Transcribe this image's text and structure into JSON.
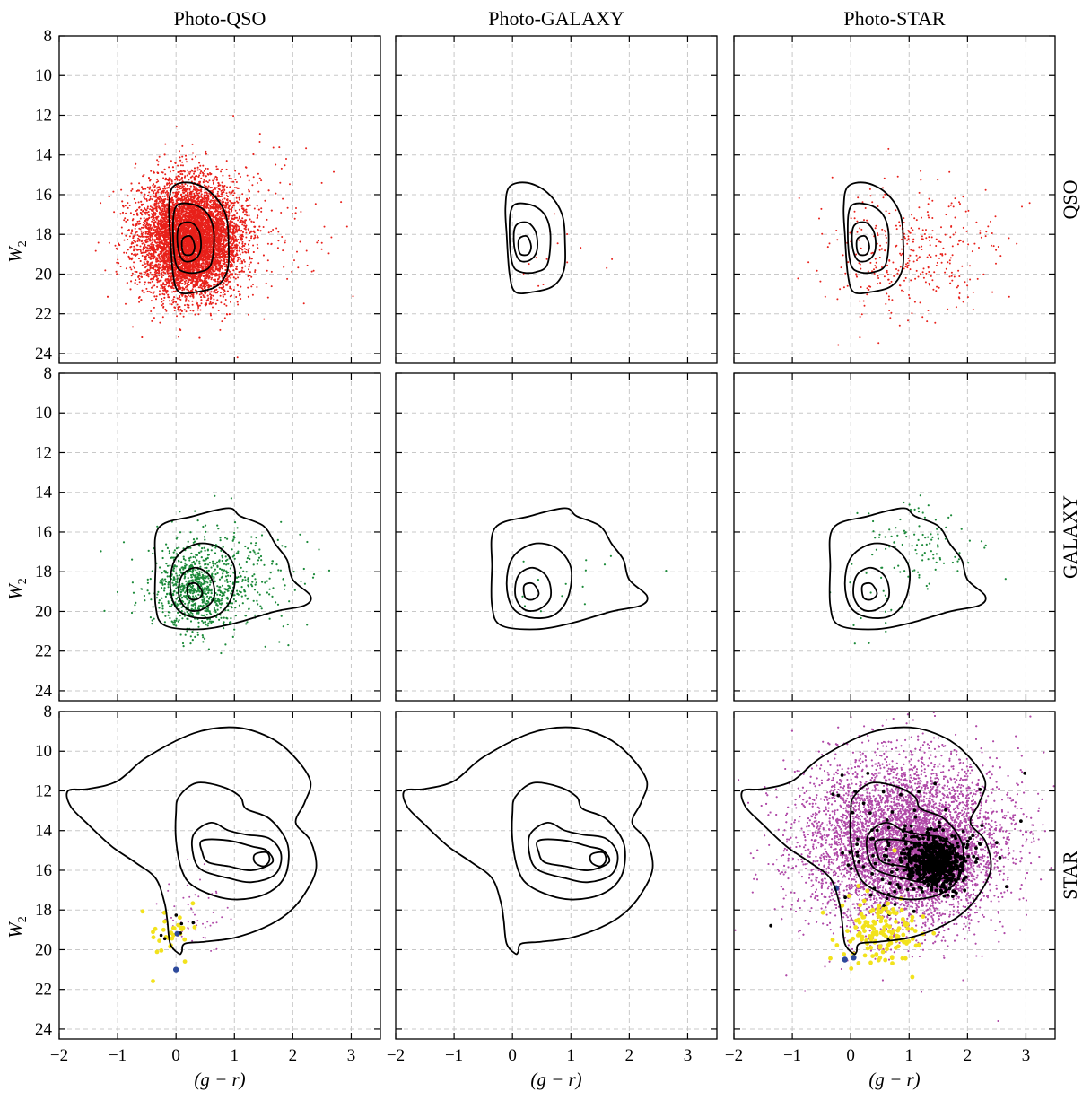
{
  "chart_data": {
    "type": "scatter",
    "layout": "3x3 grid of scatter panels with density contours",
    "column_titles": [
      "Photo-QSO",
      "Photo-GALAXY",
      "Photo-STAR"
    ],
    "row_labels": [
      "QSO",
      "GALAXY",
      "STAR"
    ],
    "xlabel": "(g − r)",
    "ylabel": "W",
    "ylabel_subscript": "2",
    "xlim": [
      -2,
      3.5
    ],
    "ylim": [
      24.5,
      8
    ],
    "y_inverted": true,
    "xticks": [
      -2,
      -1,
      0,
      1,
      2,
      3
    ],
    "yticks": [
      8,
      10,
      12,
      14,
      16,
      18,
      20,
      22,
      24
    ],
    "grid": true,
    "colors": {
      "qso": "#e8201a",
      "galaxy": "#1c8a3a",
      "star": "#b04aa8",
      "yellow": "#f2e21c",
      "blue": "#2d4a9c",
      "black": "#000000",
      "contour": "#000000"
    },
    "contours": {
      "QSO": [
        [
          [
            -0.05,
            15.6
          ],
          [
            0.25,
            15.4
          ],
          [
            0.6,
            15.9
          ],
          [
            0.85,
            17.0
          ],
          [
            0.9,
            18.5
          ],
          [
            0.88,
            19.8
          ],
          [
            0.7,
            20.6
          ],
          [
            0.35,
            20.9
          ],
          [
            0.05,
            20.9
          ],
          [
            -0.05,
            20.0
          ],
          [
            -0.1,
            18.0
          ],
          [
            -0.12,
            16.6
          ]
        ],
        [
          [
            0.0,
            16.6
          ],
          [
            0.3,
            16.5
          ],
          [
            0.55,
            17.0
          ],
          [
            0.65,
            18.0
          ],
          [
            0.6,
            19.5
          ],
          [
            0.4,
            19.9
          ],
          [
            0.15,
            19.9
          ],
          [
            0.0,
            19.5
          ],
          [
            -0.05,
            18.0
          ]
        ],
        [
          [
            0.05,
            17.6
          ],
          [
            0.25,
            17.4
          ],
          [
            0.4,
            17.9
          ],
          [
            0.42,
            18.8
          ],
          [
            0.3,
            19.3
          ],
          [
            0.12,
            19.3
          ],
          [
            0.03,
            18.6
          ]
        ],
        [
          [
            0.12,
            18.2
          ],
          [
            0.25,
            18.1
          ],
          [
            0.32,
            18.6
          ],
          [
            0.27,
            19.0
          ],
          [
            0.14,
            19.0
          ],
          [
            0.1,
            18.6
          ]
        ]
      ],
      "GALAXY": [
        [
          [
            -0.3,
            15.8
          ],
          [
            0.3,
            15.2
          ],
          [
            0.9,
            14.8
          ],
          [
            1.1,
            15.2
          ],
          [
            1.5,
            15.7
          ],
          [
            1.7,
            16.6
          ],
          [
            1.9,
            17.4
          ],
          [
            2.0,
            18.4
          ],
          [
            2.3,
            19.2
          ],
          [
            2.2,
            19.7
          ],
          [
            1.7,
            20.0
          ],
          [
            1.0,
            20.6
          ],
          [
            0.4,
            20.9
          ],
          [
            -0.2,
            20.7
          ],
          [
            -0.35,
            19.7
          ],
          [
            -0.35,
            17.8
          ]
        ],
        [
          [
            0.0,
            17.3
          ],
          [
            0.35,
            16.6
          ],
          [
            0.75,
            16.8
          ],
          [
            1.0,
            17.8
          ],
          [
            0.95,
            19.3
          ],
          [
            0.7,
            20.2
          ],
          [
            0.3,
            20.3
          ],
          [
            0.0,
            19.8
          ],
          [
            -0.1,
            18.6
          ]
        ],
        [
          [
            0.1,
            18.2
          ],
          [
            0.35,
            17.8
          ],
          [
            0.6,
            18.3
          ],
          [
            0.65,
            19.3
          ],
          [
            0.45,
            19.9
          ],
          [
            0.2,
            19.9
          ],
          [
            0.05,
            19.2
          ]
        ],
        [
          [
            0.2,
            18.7
          ],
          [
            0.35,
            18.6
          ],
          [
            0.45,
            19.1
          ],
          [
            0.35,
            19.4
          ],
          [
            0.22,
            19.3
          ]
        ]
      ],
      "STAR": [
        [
          [
            -1.85,
            12.0
          ],
          [
            -1.5,
            11.9
          ],
          [
            -1.0,
            11.5
          ],
          [
            -0.5,
            10.3
          ],
          [
            0.3,
            9.1
          ],
          [
            1.0,
            8.8
          ],
          [
            1.6,
            9.3
          ],
          [
            2.0,
            10.2
          ],
          [
            2.3,
            11.5
          ],
          [
            2.2,
            12.6
          ],
          [
            2.05,
            13.6
          ],
          [
            2.3,
            14.5
          ],
          [
            2.4,
            15.9
          ],
          [
            2.2,
            17.2
          ],
          [
            1.9,
            18.2
          ],
          [
            1.5,
            18.9
          ],
          [
            1.0,
            19.4
          ],
          [
            0.5,
            19.6
          ],
          [
            0.15,
            19.7
          ],
          [
            0.1,
            20.1
          ],
          [
            0.05,
            20.2
          ],
          [
            -0.1,
            19.7
          ],
          [
            -0.15,
            18.5
          ],
          [
            -0.2,
            17.6
          ],
          [
            -0.35,
            16.4
          ],
          [
            -0.7,
            15.6
          ],
          [
            -1.1,
            14.8
          ],
          [
            -1.5,
            13.7
          ],
          [
            -1.8,
            12.8
          ]
        ],
        [
          [
            0.05,
            12.3
          ],
          [
            0.35,
            11.6
          ],
          [
            0.8,
            11.8
          ],
          [
            1.1,
            12.3
          ],
          [
            1.2,
            12.9
          ],
          [
            1.6,
            13.4
          ],
          [
            1.9,
            14.6
          ],
          [
            1.9,
            16.0
          ],
          [
            1.7,
            16.9
          ],
          [
            1.3,
            17.4
          ],
          [
            0.8,
            17.4
          ],
          [
            0.3,
            16.8
          ],
          [
            0.1,
            16.0
          ],
          [
            0.0,
            14.5
          ],
          [
            0.0,
            13.1
          ]
        ],
        [
          [
            0.3,
            14.2
          ],
          [
            0.6,
            13.6
          ],
          [
            0.9,
            14.0
          ],
          [
            1.2,
            14.2
          ],
          [
            1.6,
            14.4
          ],
          [
            1.8,
            15.2
          ],
          [
            1.7,
            16.2
          ],
          [
            1.3,
            16.6
          ],
          [
            0.9,
            16.4
          ],
          [
            0.45,
            16.0
          ],
          [
            0.3,
            15.3
          ]
        ],
        [
          [
            0.45,
            14.5
          ],
          [
            0.9,
            14.5
          ],
          [
            1.3,
            14.8
          ],
          [
            1.55,
            15.0
          ],
          [
            1.65,
            15.6
          ],
          [
            1.3,
            16.0
          ],
          [
            0.9,
            15.8
          ],
          [
            0.55,
            15.6
          ],
          [
            0.45,
            15.1
          ]
        ],
        [
          [
            1.35,
            15.2
          ],
          [
            1.55,
            15.1
          ],
          [
            1.6,
            15.5
          ],
          [
            1.5,
            15.8
          ],
          [
            1.35,
            15.6
          ]
        ]
      ]
    },
    "panels": [
      {
        "row": "QSO",
        "col": "Photo-QSO",
        "contour": "QSO",
        "points": [
          {
            "color": "qso",
            "n": 9000,
            "cx": 0.25,
            "cy": 18.2,
            "sx": 0.42,
            "sy": 1.4,
            "r": 1.0
          },
          {
            "color": "qso",
            "n": 260,
            "cx": 0.8,
            "cy": 18.2,
            "sx": 0.9,
            "sy": 2.1,
            "r": 1.0
          }
        ]
      },
      {
        "row": "QSO",
        "col": "Photo-GALAXY",
        "contour": "QSO",
        "points": [
          {
            "color": "qso",
            "n": 14,
            "cx": 0.6,
            "cy": 18.8,
            "sx": 0.5,
            "sy": 1.2,
            "r": 1.0
          }
        ]
      },
      {
        "row": "QSO",
        "col": "Photo-STAR",
        "contour": "QSO",
        "points": [
          {
            "color": "qso",
            "n": 300,
            "cx": 0.9,
            "cy": 19.0,
            "sx": 0.75,
            "sy": 1.6,
            "r": 1.0
          },
          {
            "color": "qso",
            "n": 70,
            "cx": 1.5,
            "cy": 18.4,
            "sx": 0.8,
            "sy": 1.1,
            "r": 1.0
          }
        ]
      },
      {
        "row": "GALAXY",
        "col": "Photo-QSO",
        "contour": "GALAXY",
        "points": [
          {
            "color": "galaxy",
            "n": 700,
            "cx": 0.35,
            "cy": 18.8,
            "sx": 0.35,
            "sy": 1.0,
            "r": 1.1
          },
          {
            "color": "galaxy",
            "n": 300,
            "cx": 0.9,
            "cy": 18.3,
            "sx": 0.7,
            "sy": 1.4,
            "r": 1.1
          }
        ]
      },
      {
        "row": "GALAXY",
        "col": "Photo-GALAXY",
        "contour": "GALAXY",
        "points": [
          {
            "color": "galaxy",
            "n": 14,
            "cx": 1.0,
            "cy": 19.0,
            "sx": 0.6,
            "sy": 0.9,
            "r": 1.1
          }
        ]
      },
      {
        "row": "GALAXY",
        "col": "Photo-STAR",
        "contour": "GALAXY",
        "points": [
          {
            "color": "galaxy",
            "n": 110,
            "cx": 1.0,
            "cy": 16.8,
            "sx": 0.5,
            "sy": 1.3,
            "r": 1.1
          },
          {
            "color": "galaxy",
            "n": 15,
            "cx": 0.4,
            "cy": 19.8,
            "sx": 0.5,
            "sy": 0.8,
            "r": 1.1
          }
        ]
      },
      {
        "row": "STAR",
        "col": "Photo-QSO",
        "contour": "STAR",
        "points": [
          {
            "color": "star",
            "n": 60,
            "cx": 0.3,
            "cy": 18.2,
            "sx": 0.3,
            "sy": 1.0,
            "r": 1.0
          },
          {
            "color": "yellow",
            "n": 30,
            "cx": 0.0,
            "cy": 19.2,
            "sx": 0.25,
            "sy": 0.8,
            "r": 2.4
          },
          {
            "color": "black",
            "n": 6,
            "cx": 0.05,
            "cy": 19.0,
            "sx": 0.15,
            "sy": 0.6,
            "r": 1.8
          },
          {
            "color": "blue",
            "n": 1,
            "cx": 0.0,
            "cy": 21.0,
            "sx": 0,
            "sy": 0,
            "r": 3.2
          },
          {
            "color": "blue",
            "n": 1,
            "cx": 0.02,
            "cy": 19.2,
            "sx": 0,
            "sy": 0,
            "r": 3.0
          }
        ]
      },
      {
        "row": "STAR",
        "col": "Photo-GALAXY",
        "contour": "STAR",
        "points": []
      },
      {
        "row": "STAR",
        "col": "Photo-STAR",
        "contour": "STAR",
        "points": [
          {
            "color": "star",
            "n": 14000,
            "cx": 0.9,
            "cy": 14.6,
            "sx": 0.85,
            "sy": 2.1,
            "r": 1.0
          },
          {
            "color": "star",
            "n": 2500,
            "cx": 1.4,
            "cy": 15.4,
            "sx": 0.3,
            "sy": 0.8,
            "r": 1.0
          },
          {
            "color": "black",
            "n": 550,
            "cx": 1.45,
            "cy": 15.6,
            "sx": 0.25,
            "sy": 0.7,
            "r": 1.9
          },
          {
            "color": "black",
            "n": 110,
            "cx": 1.0,
            "cy": 15.0,
            "sx": 0.7,
            "sy": 1.8,
            "r": 1.9
          },
          {
            "color": "yellow",
            "n": 140,
            "cx": 0.5,
            "cy": 19.2,
            "sx": 0.35,
            "sy": 0.8,
            "r": 2.4
          },
          {
            "color": "blue",
            "n": 1,
            "cx": -0.25,
            "cy": 16.9,
            "sx": 0,
            "sy": 0,
            "r": 3.2
          },
          {
            "color": "blue",
            "n": 1,
            "cx": -0.1,
            "cy": 20.5,
            "sx": 0,
            "sy": 0,
            "r": 3.2
          },
          {
            "color": "blue",
            "n": 1,
            "cx": 0.05,
            "cy": 20.4,
            "sx": 0,
            "sy": 0,
            "r": 3.2
          },
          {
            "color": "yellow",
            "n": 1,
            "cx": 0.75,
            "cy": 15.0,
            "sx": 0,
            "sy": 0,
            "r": 2.6
          }
        ]
      }
    ]
  }
}
